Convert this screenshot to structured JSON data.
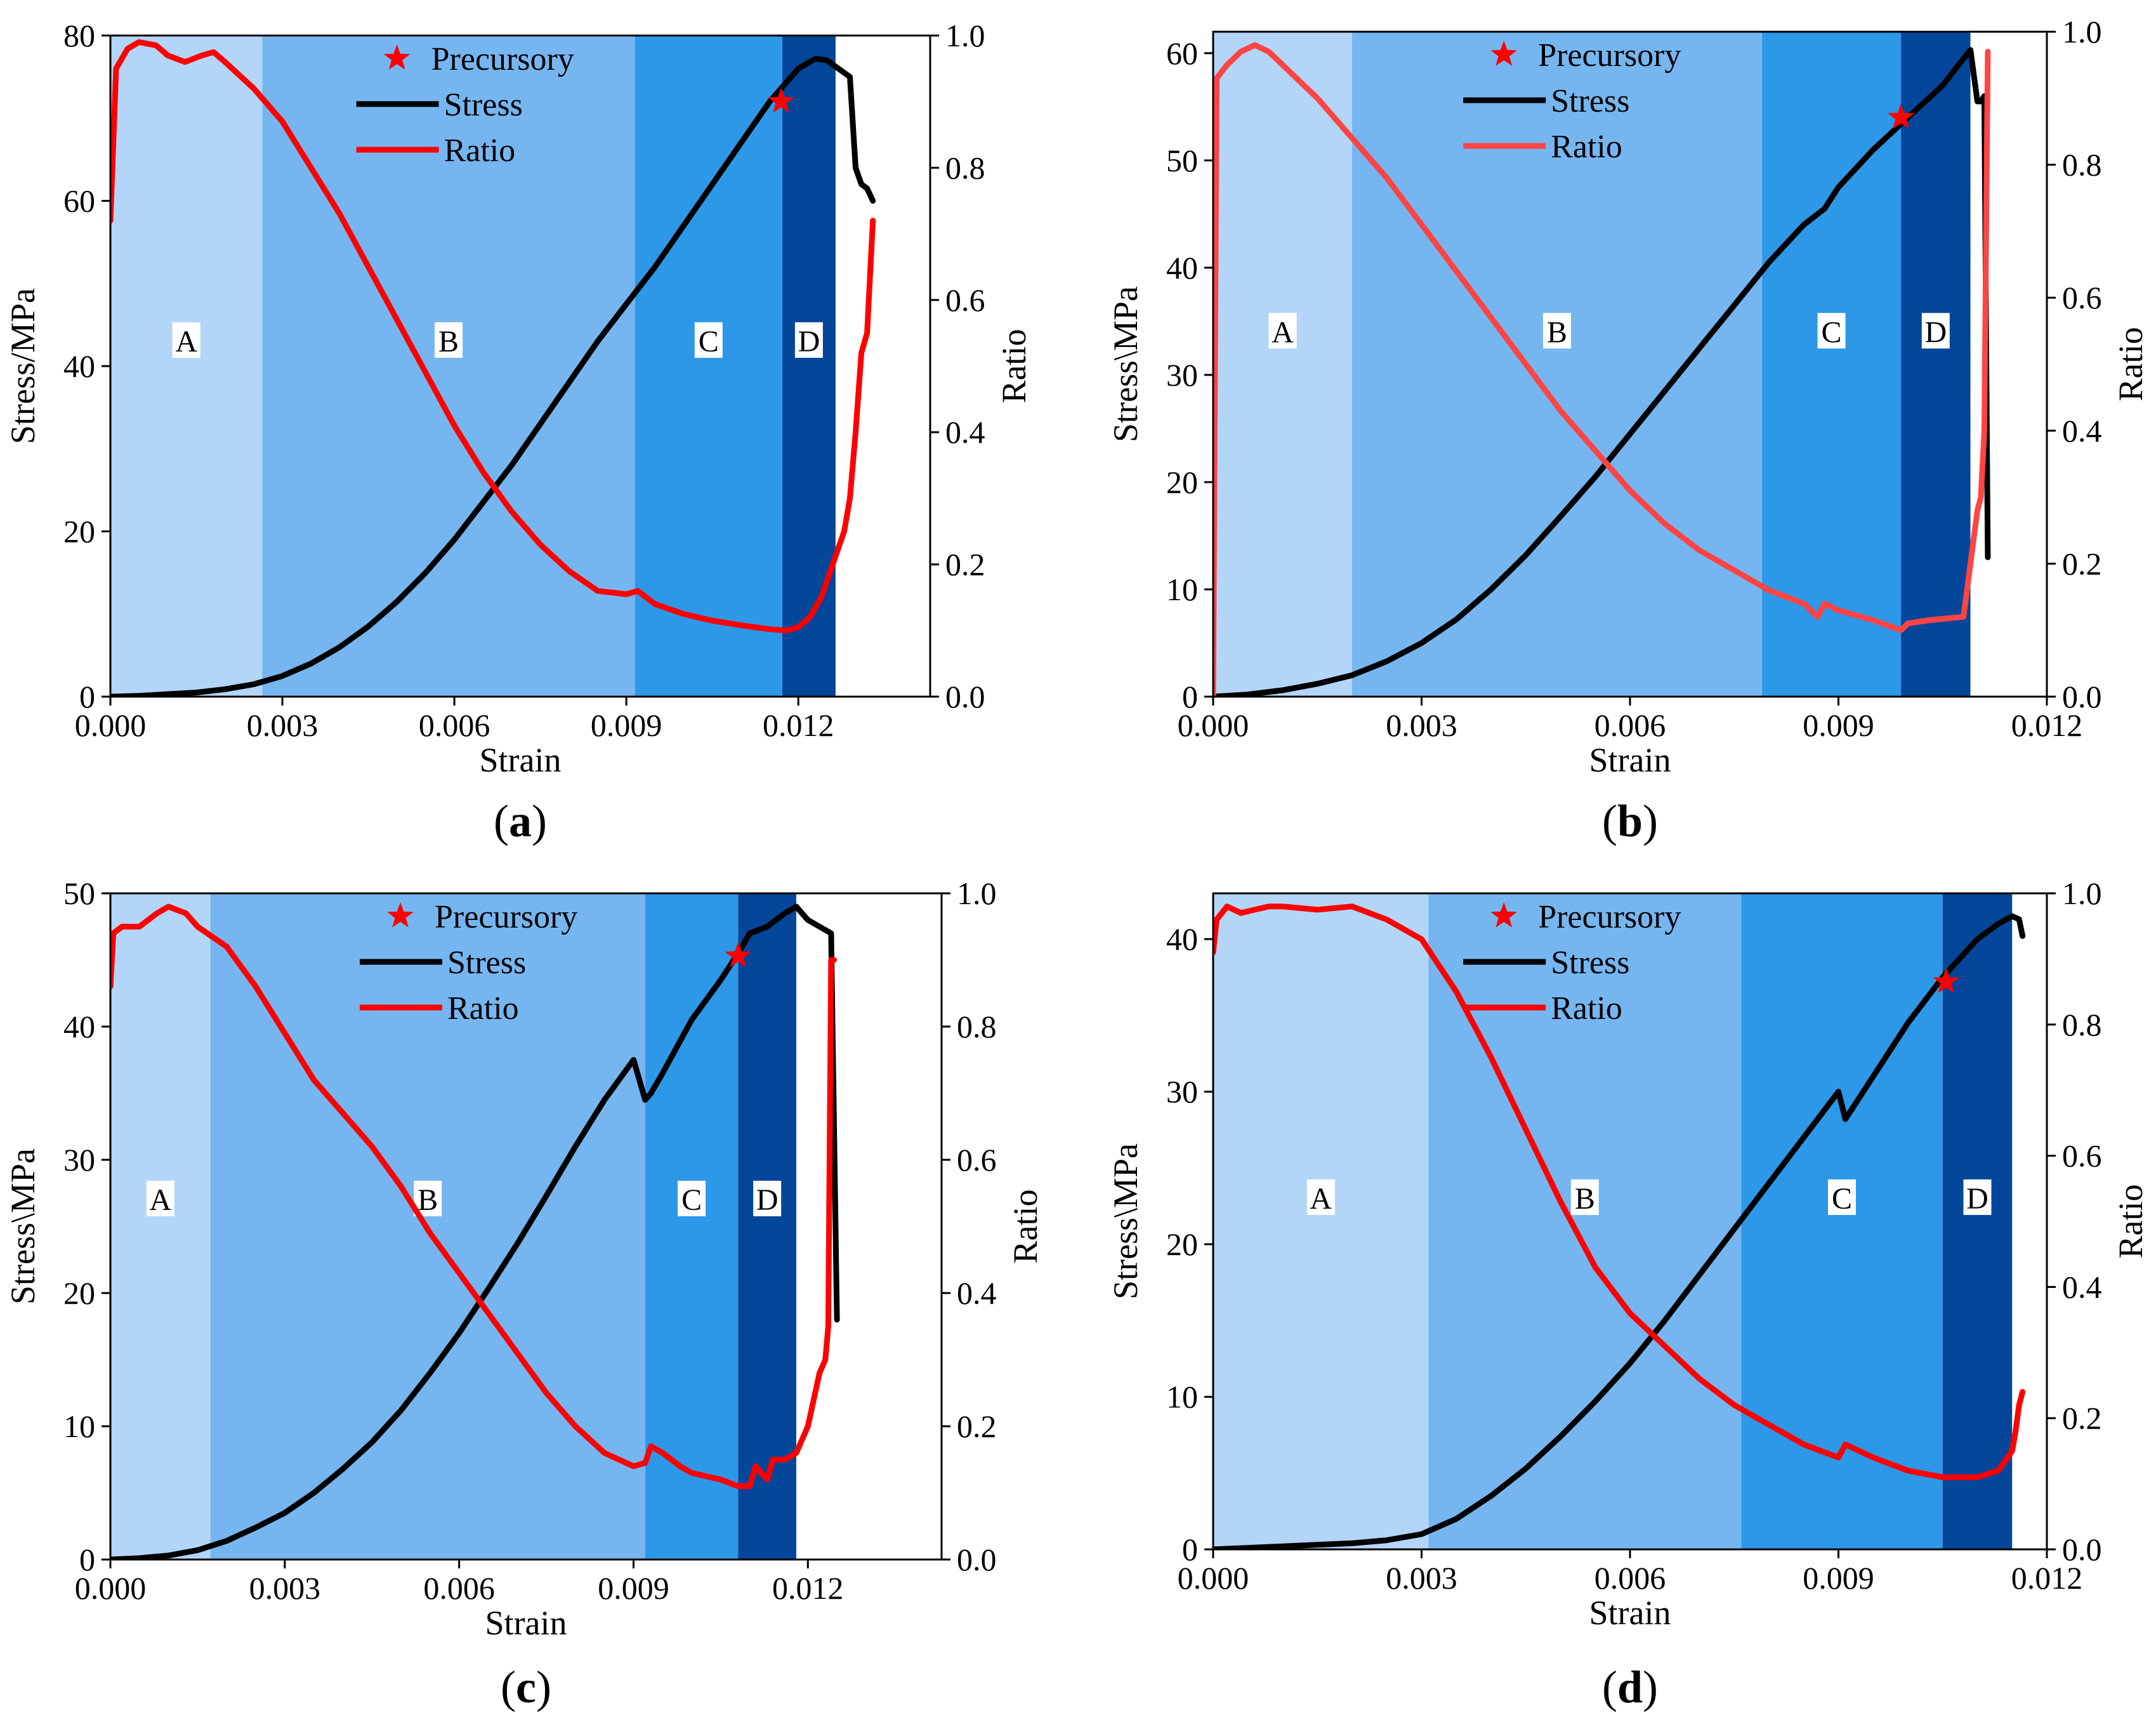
{
  "figure": {
    "panels": [
      {
        "id": "a",
        "panel_label_prefix": "(",
        "panel_label_letter": "a",
        "panel_label_suffix": ")"
      },
      {
        "id": "b",
        "panel_label_prefix": "(",
        "panel_label_letter": "b",
        "panel_label_suffix": ")"
      },
      {
        "id": "c",
        "panel_label_prefix": "(",
        "panel_label_letter": "c",
        "panel_label_suffix": ")"
      },
      {
        "id": "d",
        "panel_label_prefix": "(",
        "panel_label_letter": "d",
        "panel_label_suffix": ")"
      }
    ]
  },
  "colors": {
    "region_A": "#b3d5f8",
    "region_B": "#76b6f0",
    "region_C": "#2d98e8",
    "region_D": "#04469a",
    "stress": "#000000",
    "ratio": "#ff0000",
    "ratio_b": "#ff4444",
    "precursory": "#ff0000"
  },
  "chart_data": [
    {
      "type": "line",
      "panel": "a",
      "xlabel": "Strain",
      "ylabel": "Stress/MPa",
      "y2label": "Ratio",
      "xlim": [
        0,
        0.0143
      ],
      "ylim": [
        0,
        80
      ],
      "y2lim": [
        0,
        1.0
      ],
      "xticks": [
        "0.000",
        "0.003",
        "0.006",
        "0.009",
        "0.012"
      ],
      "xtick_values": [
        0,
        0.003,
        0.006,
        0.009,
        0.012
      ],
      "yticks": [
        "0",
        "20",
        "40",
        "60",
        "80"
      ],
      "ytick_values": [
        0,
        20,
        40,
        60,
        80
      ],
      "y2ticks": [
        "0.0",
        "0.2",
        "0.4",
        "0.6",
        "0.8",
        "1.0"
      ],
      "y2tick_values": [
        0,
        0.2,
        0.4,
        0.6,
        0.8,
        1.0
      ],
      "legend": {
        "marker_label": "Precursory",
        "stress_label": "Stress",
        "ratio_label": "Ratio",
        "placement": "top-center"
      },
      "regions": [
        {
          "label": "A",
          "x0": 0,
          "x1": 0.00265,
          "color_key": "region_A"
        },
        {
          "label": "B",
          "x0": 0.00265,
          "x1": 0.00915,
          "color_key": "region_B"
        },
        {
          "label": "C",
          "x0": 0.00915,
          "x1": 0.01172,
          "color_key": "region_C"
        },
        {
          "label": "D",
          "x0": 0.01172,
          "x1": 0.01265,
          "color_key": "region_D"
        }
      ],
      "region_label_stress": 43,
      "series": [
        {
          "name": "Stress",
          "axis": "left",
          "x": [
            0,
            0.0005,
            0.001,
            0.0015,
            0.002,
            0.0025,
            0.003,
            0.0035,
            0.004,
            0.0045,
            0.005,
            0.0055,
            0.006,
            0.0065,
            0.007,
            0.0075,
            0.008,
            0.0085,
            0.009,
            0.0095,
            0.01,
            0.0105,
            0.011,
            0.0115,
            0.012,
            0.0123,
            0.0125,
            0.0127,
            0.0129,
            0.013,
            0.0131,
            0.0132,
            0.0133
          ],
          "y": [
            0,
            0.1,
            0.3,
            0.5,
            0.9,
            1.5,
            2.5,
            4,
            6,
            8.5,
            11.5,
            15,
            19,
            23.5,
            28,
            33,
            38,
            43,
            47.5,
            52,
            57,
            62,
            67,
            72,
            76,
            77.2,
            77,
            76,
            75,
            64,
            62,
            61.5,
            60
          ]
        },
        {
          "name": "Ratio",
          "axis": "right",
          "x": [
            0,
            0.0001,
            0.0003,
            0.0005,
            0.0008,
            0.001,
            0.0013,
            0.0016,
            0.0018,
            0.002,
            0.0025,
            0.003,
            0.0035,
            0.004,
            0.0045,
            0.005,
            0.0055,
            0.006,
            0.0065,
            0.007,
            0.0075,
            0.008,
            0.0085,
            0.009,
            0.0092,
            0.0095,
            0.01,
            0.0105,
            0.011,
            0.0115,
            0.0118,
            0.012,
            0.0122,
            0.0124,
            0.0126,
            0.0128,
            0.0129,
            0.013,
            0.0131,
            0.0132,
            0.0133
          ],
          "y": [
            0.72,
            0.95,
            0.98,
            0.99,
            0.985,
            0.97,
            0.96,
            0.97,
            0.975,
            0.96,
            0.92,
            0.87,
            0.8,
            0.73,
            0.65,
            0.57,
            0.49,
            0.41,
            0.34,
            0.28,
            0.23,
            0.19,
            0.16,
            0.155,
            0.16,
            0.14,
            0.125,
            0.115,
            0.108,
            0.102,
            0.1,
            0.105,
            0.12,
            0.15,
            0.2,
            0.25,
            0.3,
            0.4,
            0.52,
            0.55,
            0.72
          ]
        }
      ],
      "precursory": {
        "x": 0.0117,
        "stress": 72
      }
    },
    {
      "type": "line",
      "panel": "b",
      "xlabel": "Strain",
      "ylabel": "Stress\\MPa",
      "y2label": "Ratio",
      "xlim": [
        0,
        0.012
      ],
      "ylim": [
        0,
        62
      ],
      "y2lim": [
        0,
        1.0
      ],
      "xticks": [
        "0.000",
        "0.003",
        "0.006",
        "0.009",
        "0.012"
      ],
      "xtick_values": [
        0,
        0.003,
        0.006,
        0.009,
        0.012
      ],
      "yticks": [
        "0",
        "10",
        "20",
        "30",
        "40",
        "50",
        "60"
      ],
      "ytick_values": [
        0,
        10,
        20,
        30,
        40,
        50,
        60
      ],
      "y2ticks": [
        "0.0",
        "0.2",
        "0.4",
        "0.6",
        "0.8",
        "1.0"
      ],
      "y2tick_values": [
        0,
        0.2,
        0.4,
        0.6,
        0.8,
        1.0
      ],
      "legend": {
        "marker_label": "Precursory",
        "stress_label": "Stress",
        "ratio_label": "Ratio",
        "placement": "top-center"
      },
      "regions": [
        {
          "label": "A",
          "x0": 0,
          "x1": 0.002,
          "color_key": "region_A"
        },
        {
          "label": "B",
          "x0": 0.002,
          "x1": 0.0079,
          "color_key": "region_B"
        },
        {
          "label": "C",
          "x0": 0.0079,
          "x1": 0.0099,
          "color_key": "region_C"
        },
        {
          "label": "D",
          "x0": 0.0099,
          "x1": 0.0109,
          "color_key": "region_D"
        }
      ],
      "region_label_stress": 34,
      "series": [
        {
          "name": "Stress",
          "axis": "left",
          "x": [
            0,
            0.0005,
            0.001,
            0.0015,
            0.002,
            0.0025,
            0.003,
            0.0035,
            0.004,
            0.0045,
            0.005,
            0.0055,
            0.006,
            0.0065,
            0.007,
            0.0075,
            0.008,
            0.0085,
            0.0088,
            0.009,
            0.0095,
            0.01,
            0.0105,
            0.0108,
            0.0109,
            0.011,
            0.01105,
            0.0111,
            0.01115
          ],
          "y": [
            0,
            0.2,
            0.6,
            1.2,
            2,
            3.3,
            5,
            7.2,
            10,
            13.2,
            16.8,
            20.5,
            24.5,
            28.5,
            32.5,
            36.5,
            40.5,
            44,
            45.5,
            47.5,
            51,
            54,
            57,
            59.5,
            60.3,
            55.5,
            55.5,
            56,
            13
          ]
        },
        {
          "name": "Ratio",
          "axis": "right",
          "x": [
            0,
            5e-05,
            0.0002,
            0.0004,
            0.0006,
            0.0008,
            0.001,
            0.0015,
            0.002,
            0.0025,
            0.003,
            0.0035,
            0.004,
            0.0045,
            0.005,
            0.0055,
            0.006,
            0.0065,
            0.007,
            0.0075,
            0.008,
            0.0085,
            0.0087,
            0.0088,
            0.009,
            0.0095,
            0.0099,
            0.01,
            0.0103,
            0.0108,
            0.0109,
            0.011,
            0.01105,
            0.0111,
            0.01115
          ],
          "y": [
            0.0,
            0.93,
            0.95,
            0.97,
            0.98,
            0.97,
            0.95,
            0.9,
            0.84,
            0.78,
            0.71,
            0.64,
            0.57,
            0.5,
            0.43,
            0.37,
            0.31,
            0.26,
            0.22,
            0.19,
            0.16,
            0.14,
            0.12,
            0.14,
            0.13,
            0.115,
            0.1,
            0.11,
            0.115,
            0.12,
            0.2,
            0.28,
            0.3,
            0.4,
            0.97
          ]
        }
      ],
      "precursory": {
        "x": 0.0099,
        "stress": 54
      }
    },
    {
      "type": "line",
      "panel": "c",
      "xlabel": "Strain",
      "ylabel": "Stress\\MPa",
      "y2label": "Ratio",
      "xlim": [
        0,
        0.0143
      ],
      "ylim": [
        0,
        50
      ],
      "y2lim": [
        0,
        1.0
      ],
      "xticks": [
        "0.000",
        "0.003",
        "0.006",
        "0.009",
        "0.012"
      ],
      "xtick_values": [
        0,
        0.003,
        0.006,
        0.009,
        0.012
      ],
      "yticks": [
        "0",
        "10",
        "20",
        "30",
        "40",
        "50"
      ],
      "ytick_values": [
        0,
        10,
        20,
        30,
        40,
        50
      ],
      "y2ticks": [
        "0.0",
        "0.2",
        "0.4",
        "0.6",
        "0.8",
        "1.0"
      ],
      "y2tick_values": [
        0,
        0.2,
        0.4,
        0.6,
        0.8,
        1.0
      ],
      "legend": {
        "marker_label": "Precursory",
        "stress_label": "Stress",
        "ratio_label": "Ratio",
        "placement": "top-center"
      },
      "regions": [
        {
          "label": "A",
          "x0": 0,
          "x1": 0.00172,
          "color_key": "region_A"
        },
        {
          "label": "B",
          "x0": 0.00172,
          "x1": 0.0092,
          "color_key": "region_B"
        },
        {
          "label": "C",
          "x0": 0.0092,
          "x1": 0.0108,
          "color_key": "region_C"
        },
        {
          "label": "D",
          "x0": 0.0108,
          "x1": 0.0118,
          "color_key": "region_D"
        }
      ],
      "region_label_stress": 27,
      "series": [
        {
          "name": "Stress",
          "axis": "left",
          "x": [
            0,
            0.0005,
            0.001,
            0.0015,
            0.002,
            0.0025,
            0.003,
            0.0035,
            0.004,
            0.0045,
            0.005,
            0.0055,
            0.006,
            0.0065,
            0.007,
            0.0075,
            0.008,
            0.0085,
            0.009,
            0.0092,
            0.0093,
            0.0095,
            0.01,
            0.0105,
            0.0108,
            0.011,
            0.0113,
            0.0116,
            0.0118,
            0.012,
            0.0122,
            0.0124,
            0.0125
          ],
          "y": [
            0,
            0.1,
            0.3,
            0.7,
            1.4,
            2.4,
            3.5,
            5,
            6.8,
            8.8,
            11.2,
            14,
            17,
            20.3,
            23.7,
            27.3,
            31,
            34.5,
            37.5,
            34.5,
            35,
            36.5,
            40.5,
            43.5,
            45.5,
            47,
            47.5,
            48.5,
            49,
            48,
            47.5,
            47,
            18
          ]
        },
        {
          "name": "Ratio",
          "axis": "right",
          "x": [
            0,
            5e-05,
            0.0002,
            0.0005,
            0.0008,
            0.001,
            0.0013,
            0.0015,
            0.002,
            0.0025,
            0.003,
            0.0035,
            0.004,
            0.0045,
            0.005,
            0.0055,
            0.006,
            0.0065,
            0.007,
            0.0075,
            0.008,
            0.0085,
            0.009,
            0.0092,
            0.0093,
            0.0095,
            0.0098,
            0.01,
            0.0105,
            0.0108,
            0.011,
            0.0111,
            0.0112,
            0.0113,
            0.0114,
            0.0116,
            0.0118,
            0.012,
            0.0122,
            0.0123,
            0.01235,
            0.0124,
            0.01245
          ],
          "y": [
            0.86,
            0.94,
            0.95,
            0.95,
            0.97,
            0.98,
            0.97,
            0.95,
            0.92,
            0.86,
            0.79,
            0.72,
            0.67,
            0.62,
            0.56,
            0.49,
            0.43,
            0.37,
            0.31,
            0.25,
            0.2,
            0.16,
            0.14,
            0.145,
            0.17,
            0.16,
            0.14,
            0.13,
            0.12,
            0.11,
            0.11,
            0.14,
            0.13,
            0.12,
            0.15,
            0.15,
            0.16,
            0.2,
            0.28,
            0.3,
            0.35,
            0.9,
            0.9
          ]
        }
      ],
      "precursory": {
        "x": 0.0108,
        "stress": 45.3
      }
    },
    {
      "type": "line",
      "panel": "d",
      "xlabel": "Strain",
      "ylabel": "Stress\\MPa",
      "y2label": "Ratio",
      "xlim": [
        0,
        0.012
      ],
      "ylim": [
        0,
        43
      ],
      "y2lim": [
        0,
        1.0
      ],
      "xticks": [
        "0.000",
        "0.003",
        "0.006",
        "0.009",
        "0.012"
      ],
      "xtick_values": [
        0,
        0.003,
        0.006,
        0.009,
        0.012
      ],
      "yticks": [
        "0",
        "10",
        "20",
        "30",
        "40"
      ],
      "ytick_values": [
        0,
        10,
        20,
        30,
        40
      ],
      "y2ticks": [
        "0.0",
        "0.2",
        "0.4",
        "0.6",
        "0.8",
        "1.0"
      ],
      "y2tick_values": [
        0,
        0.2,
        0.4,
        0.6,
        0.8,
        1.0
      ],
      "legend": {
        "marker_label": "Precursory",
        "stress_label": "Stress",
        "ratio_label": "Ratio",
        "placement": "top-center"
      },
      "regions": [
        {
          "label": "A",
          "x0": 0,
          "x1": 0.0031,
          "color_key": "region_A"
        },
        {
          "label": "B",
          "x0": 0.0031,
          "x1": 0.0076,
          "color_key": "region_B"
        },
        {
          "label": "C",
          "x0": 0.0076,
          "x1": 0.0105,
          "color_key": "region_C"
        },
        {
          "label": "D",
          "x0": 0.0105,
          "x1": 0.0115,
          "color_key": "region_D"
        }
      ],
      "region_label_stress": 23,
      "series": [
        {
          "name": "Stress",
          "axis": "left",
          "x": [
            0,
            0.0005,
            0.001,
            0.0015,
            0.002,
            0.0025,
            0.003,
            0.0035,
            0.004,
            0.0045,
            0.005,
            0.0055,
            0.006,
            0.0065,
            0.007,
            0.0075,
            0.008,
            0.0085,
            0.009,
            0.0091,
            0.0095,
            0.01,
            0.0105,
            0.011,
            0.0113,
            0.0115,
            0.0116,
            0.01165
          ],
          "y": [
            0,
            0.1,
            0.2,
            0.3,
            0.4,
            0.6,
            1,
            2,
            3.5,
            5.3,
            7.4,
            9.7,
            12.2,
            15,
            18,
            21,
            24,
            27,
            30,
            28.2,
            31,
            34.5,
            37.5,
            40,
            41,
            41.5,
            41.3,
            40.2
          ]
        },
        {
          "name": "Ratio",
          "axis": "right",
          "x": [
            0,
            5e-05,
            0.0002,
            0.0004,
            0.0006,
            0.0008,
            0.001,
            0.0015,
            0.002,
            0.0025,
            0.003,
            0.0035,
            0.004,
            0.0045,
            0.005,
            0.0055,
            0.006,
            0.0065,
            0.007,
            0.0075,
            0.008,
            0.0085,
            0.009,
            0.0091,
            0.0095,
            0.01,
            0.0105,
            0.011,
            0.0113,
            0.0115,
            0.01155,
            0.0116,
            0.01165
          ],
          "y": [
            0.91,
            0.96,
            0.98,
            0.97,
            0.975,
            0.98,
            0.98,
            0.975,
            0.98,
            0.96,
            0.93,
            0.85,
            0.75,
            0.64,
            0.53,
            0.43,
            0.36,
            0.31,
            0.26,
            0.22,
            0.19,
            0.16,
            0.14,
            0.16,
            0.14,
            0.12,
            0.11,
            0.11,
            0.12,
            0.15,
            0.18,
            0.22,
            0.24
          ]
        }
      ],
      "precursory": {
        "x": 0.01055,
        "stress": 37.2
      }
    }
  ]
}
